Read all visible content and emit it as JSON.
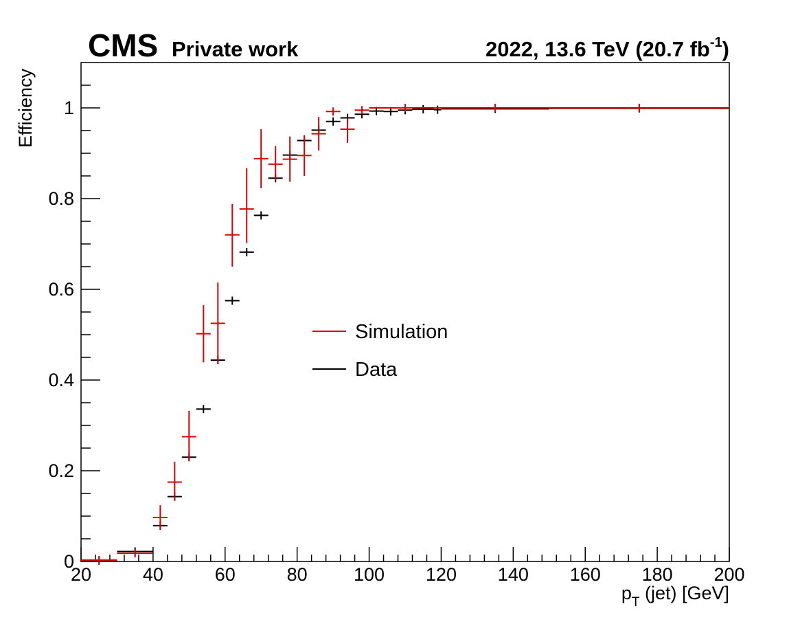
{
  "header": {
    "experiment": "CMS",
    "extra_text": "Private work",
    "lumi_text": "2022, 13.6 TeV (20.7 fb",
    "lumi_exponent": "-1",
    "lumi_close": ")"
  },
  "chart_data": {
    "type": "scatter",
    "xlabel": "p",
    "xlabel_sub": "T",
    "xlabel_rest": " (jet) [GeV]",
    "ylabel": "Efficiency",
    "xlim": [
      20,
      200
    ],
    "ylim": [
      0,
      1.1
    ],
    "x_ticks": [
      20,
      40,
      60,
      80,
      100,
      120,
      140,
      160,
      180,
      200
    ],
    "x_tick_labels": [
      "20",
      "40",
      "60",
      "80",
      "100",
      "120",
      "140",
      "160",
      "180",
      "200"
    ],
    "y_ticks": [
      0,
      0.2,
      0.4,
      0.6,
      0.8,
      1
    ],
    "y_tick_labels": [
      "0",
      "0.2",
      "0.4",
      "0.6",
      "0.8",
      "1"
    ],
    "grid": false,
    "legend_position": "center",
    "series": [
      {
        "name": "Simulation",
        "color": "#dd0000",
        "points": [
          {
            "x": 25,
            "xlo": 20,
            "xhi": 30,
            "y": 0.003,
            "elo": 0.002,
            "ehi": 0.003
          },
          {
            "x": 35,
            "xlo": 30,
            "xhi": 40,
            "y": 0.018,
            "elo": 0.004,
            "ehi": 0.004
          },
          {
            "x": 42,
            "xlo": 40,
            "xhi": 44,
            "y": 0.097,
            "elo": 0.025,
            "ehi": 0.027
          },
          {
            "x": 46,
            "xlo": 44,
            "xhi": 48,
            "y": 0.175,
            "elo": 0.04,
            "ehi": 0.045
          },
          {
            "x": 50,
            "xlo": 48,
            "xhi": 52,
            "y": 0.275,
            "elo": 0.053,
            "ehi": 0.057
          },
          {
            "x": 54,
            "xlo": 52,
            "xhi": 56,
            "y": 0.502,
            "elo": 0.063,
            "ehi": 0.063
          },
          {
            "x": 58,
            "xlo": 56,
            "xhi": 60,
            "y": 0.525,
            "elo": 0.09,
            "ehi": 0.09
          },
          {
            "x": 62,
            "xlo": 60,
            "xhi": 64,
            "y": 0.72,
            "elo": 0.07,
            "ehi": 0.068
          },
          {
            "x": 66,
            "xlo": 64,
            "xhi": 68,
            "y": 0.777,
            "elo": 0.075,
            "ehi": 0.09
          },
          {
            "x": 70,
            "xlo": 68,
            "xhi": 72,
            "y": 0.888,
            "elo": 0.065,
            "ehi": 0.065
          },
          {
            "x": 74,
            "xlo": 72,
            "xhi": 76,
            "y": 0.876,
            "elo": 0.035,
            "ehi": 0.04
          },
          {
            "x": 78,
            "xlo": 76,
            "xhi": 80,
            "y": 0.887,
            "elo": 0.05,
            "ehi": 0.05
          },
          {
            "x": 82,
            "xlo": 80,
            "xhi": 84,
            "y": 0.895,
            "elo": 0.045,
            "ehi": 0.045
          },
          {
            "x": 86,
            "xlo": 84,
            "xhi": 88,
            "y": 0.943,
            "elo": 0.037,
            "ehi": 0.037
          },
          {
            "x": 90,
            "xlo": 88,
            "xhi": 92,
            "y": 0.992,
            "elo": 0.005,
            "ehi": 0.003
          },
          {
            "x": 94,
            "xlo": 92,
            "xhi": 96,
            "y": 0.953,
            "elo": 0.03,
            "ehi": 0.025
          },
          {
            "x": 98,
            "xlo": 96,
            "xhi": 100,
            "y": 0.995,
            "elo": 0.003,
            "ehi": 0.002
          },
          {
            "x": 110,
            "xlo": 100,
            "xhi": 120,
            "y": 1.0,
            "elo": 0,
            "ehi": 0
          },
          {
            "x": 135,
            "xlo": 120,
            "xhi": 150,
            "y": 1.0,
            "elo": 0,
            "ehi": 0
          },
          {
            "x": 175,
            "xlo": 150,
            "xhi": 200,
            "y": 1.0,
            "elo": 0,
            "ehi": 0
          }
        ]
      },
      {
        "name": "Data",
        "color": "#000000",
        "points": [
          {
            "x": 25,
            "xlo": 20,
            "xhi": 30,
            "y": 0.002,
            "elo": 0.001,
            "ehi": 0.001
          },
          {
            "x": 35,
            "xlo": 30,
            "xhi": 40,
            "y": 0.022,
            "elo": 0.002,
            "ehi": 0.002
          },
          {
            "x": 42,
            "xlo": 40,
            "xhi": 44,
            "y": 0.079,
            "elo": 0.005,
            "ehi": 0.005
          },
          {
            "x": 46,
            "xlo": 44,
            "xhi": 48,
            "y": 0.143,
            "elo": 0.006,
            "ehi": 0.006
          },
          {
            "x": 50,
            "xlo": 48,
            "xhi": 52,
            "y": 0.23,
            "elo": 0.007,
            "ehi": 0.007
          },
          {
            "x": 54,
            "xlo": 52,
            "xhi": 56,
            "y": 0.336,
            "elo": 0.008,
            "ehi": 0.008
          },
          {
            "x": 58,
            "xlo": 56,
            "xhi": 60,
            "y": 0.444,
            "elo": 0.008,
            "ehi": 0.008
          },
          {
            "x": 62,
            "xlo": 60,
            "xhi": 64,
            "y": 0.575,
            "elo": 0.008,
            "ehi": 0.008
          },
          {
            "x": 66,
            "xlo": 64,
            "xhi": 68,
            "y": 0.682,
            "elo": 0.007,
            "ehi": 0.007
          },
          {
            "x": 70,
            "xlo": 68,
            "xhi": 72,
            "y": 0.763,
            "elo": 0.007,
            "ehi": 0.007
          },
          {
            "x": 74,
            "xlo": 72,
            "xhi": 76,
            "y": 0.845,
            "elo": 0.006,
            "ehi": 0.006
          },
          {
            "x": 78,
            "xlo": 76,
            "xhi": 80,
            "y": 0.896,
            "elo": 0.005,
            "ehi": 0.005
          },
          {
            "x": 82,
            "xlo": 80,
            "xhi": 84,
            "y": 0.928,
            "elo": 0.004,
            "ehi": 0.004
          },
          {
            "x": 86,
            "xlo": 84,
            "xhi": 88,
            "y": 0.951,
            "elo": 0.004,
            "ehi": 0.004
          },
          {
            "x": 90,
            "xlo": 88,
            "xhi": 92,
            "y": 0.97,
            "elo": 0.003,
            "ehi": 0.003
          },
          {
            "x": 94,
            "xlo": 92,
            "xhi": 96,
            "y": 0.978,
            "elo": 0.003,
            "ehi": 0.003
          },
          {
            "x": 98,
            "xlo": 96,
            "xhi": 100,
            "y": 0.986,
            "elo": 0.002,
            "ehi": 0.002
          },
          {
            "x": 102,
            "xlo": 100,
            "xhi": 104,
            "y": 0.993,
            "elo": 0.002,
            "ehi": 0.002
          },
          {
            "x": 106,
            "xlo": 104,
            "xhi": 108,
            "y": 0.992,
            "elo": 0.002,
            "ehi": 0.002
          },
          {
            "x": 110,
            "xlo": 108,
            "xhi": 112,
            "y": 0.995,
            "elo": 0.002,
            "ehi": 0.002
          },
          {
            "x": 115,
            "xlo": 112,
            "xhi": 118,
            "y": 0.997,
            "elo": 0.001,
            "ehi": 0.001
          },
          {
            "x": 119,
            "xlo": 118,
            "xhi": 120,
            "y": 0.996,
            "elo": 0.001,
            "ehi": 0.001
          },
          {
            "x": 135,
            "xlo": 120,
            "xhi": 150,
            "y": 0.998,
            "elo": 0.001,
            "ehi": 0.001
          },
          {
            "x": 175,
            "xlo": 150,
            "xhi": 200,
            "y": 0.999,
            "elo": 0.001,
            "ehi": 0.001
          }
        ]
      }
    ]
  }
}
